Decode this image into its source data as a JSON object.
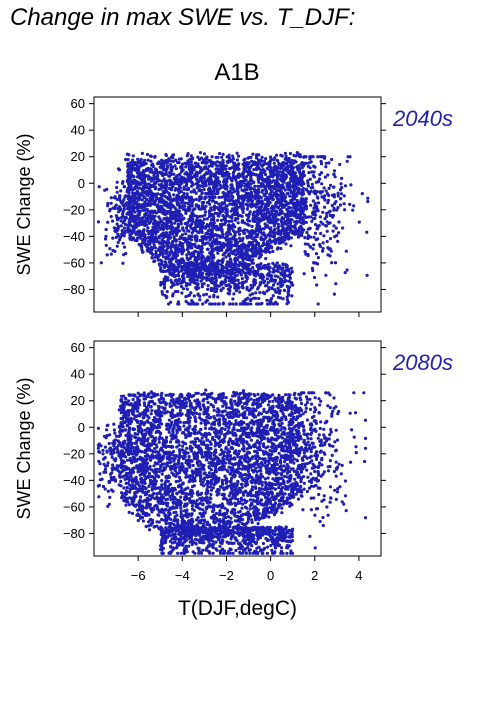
{
  "title": "Change in max SWE vs. T_DJF:",
  "scenario": "A1B",
  "colors": {
    "points": "#1f1fb4",
    "panel_label": "#2222aa",
    "axis": "#000000"
  },
  "chart_data": [
    {
      "type": "scatter",
      "panel_label": "2040s",
      "ylabel": "SWE Change (%)",
      "xlabel": "",
      "xlim": [
        -8,
        5
      ],
      "ylim": [
        -97,
        65
      ],
      "x_ticks": [
        -6,
        -4,
        -2,
        0,
        2,
        4
      ],
      "y_ticks": [
        60,
        40,
        20,
        0,
        -20,
        -40,
        -60,
        -80
      ],
      "x_tick_labels_shown": false,
      "point_cloud": {
        "core_x_range": [
          -6.5,
          1.5
        ],
        "core_top_y": 18,
        "core_bottom_y": -60,
        "min_y": -91,
        "max_y": 31,
        "outlier_x_range": [
          -7.8,
          4.4
        ]
      }
    },
    {
      "type": "scatter",
      "panel_label": "2080s",
      "ylabel": "SWE Change (%)",
      "xlabel": "T(DJF,degC)",
      "xlim": [
        -8,
        5
      ],
      "ylim": [
        -97,
        65
      ],
      "x_ticks": [
        -6,
        -4,
        -2,
        0,
        2,
        4
      ],
      "x_tick_labels": [
        "−6",
        "−4",
        "−2",
        "0",
        "2",
        "4"
      ],
      "y_ticks": [
        60,
        40,
        20,
        0,
        -20,
        -40,
        -60,
        -80
      ],
      "x_tick_labels_shown": true,
      "point_cloud": {
        "core_x_range": [
          -6.8,
          1.4
        ],
        "core_top_y": 24,
        "core_bottom_y": -75,
        "min_y": -95,
        "max_y": 28,
        "outlier_x_range": [
          -7.8,
          4.3
        ]
      }
    }
  ]
}
